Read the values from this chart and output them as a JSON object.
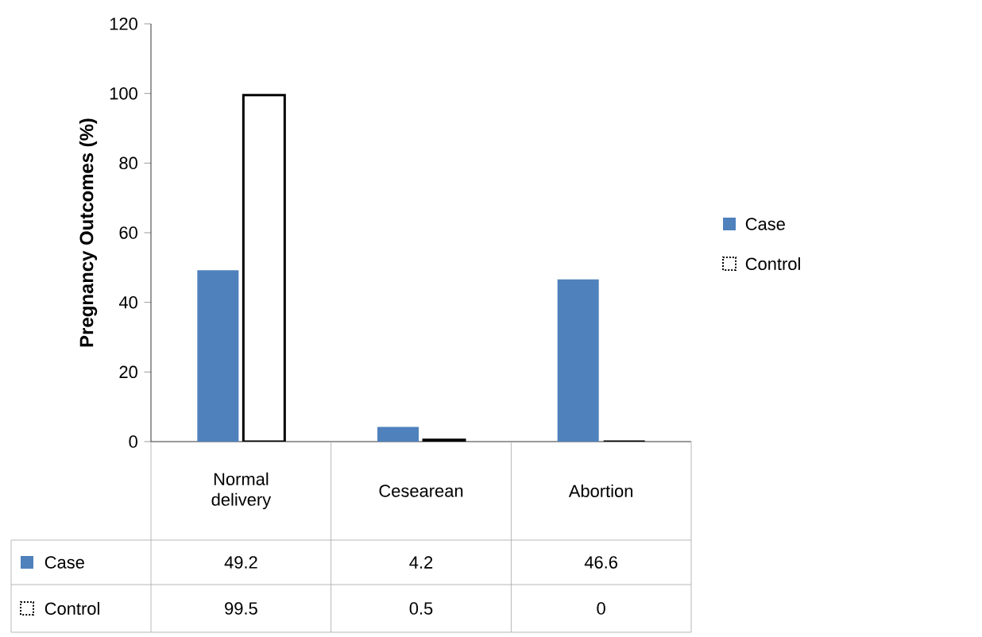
{
  "chart_data": {
    "type": "bar",
    "ylabel": "Pregnancy Outcomes (%)",
    "categories": [
      "Normal delivery",
      "Cesearean",
      "Abortion"
    ],
    "series": [
      {
        "name": "Case",
        "color": "#4f81bd",
        "values": [
          49.2,
          4.2,
          46.6
        ]
      },
      {
        "name": "Control",
        "color": "#ffffff",
        "values": [
          99.5,
          0.5,
          0
        ]
      }
    ],
    "ylim": [
      0,
      120
    ],
    "yticks": [
      0,
      20,
      40,
      60,
      80,
      100,
      120
    ],
    "grid": false,
    "legend": "right",
    "data_labels": true
  }
}
